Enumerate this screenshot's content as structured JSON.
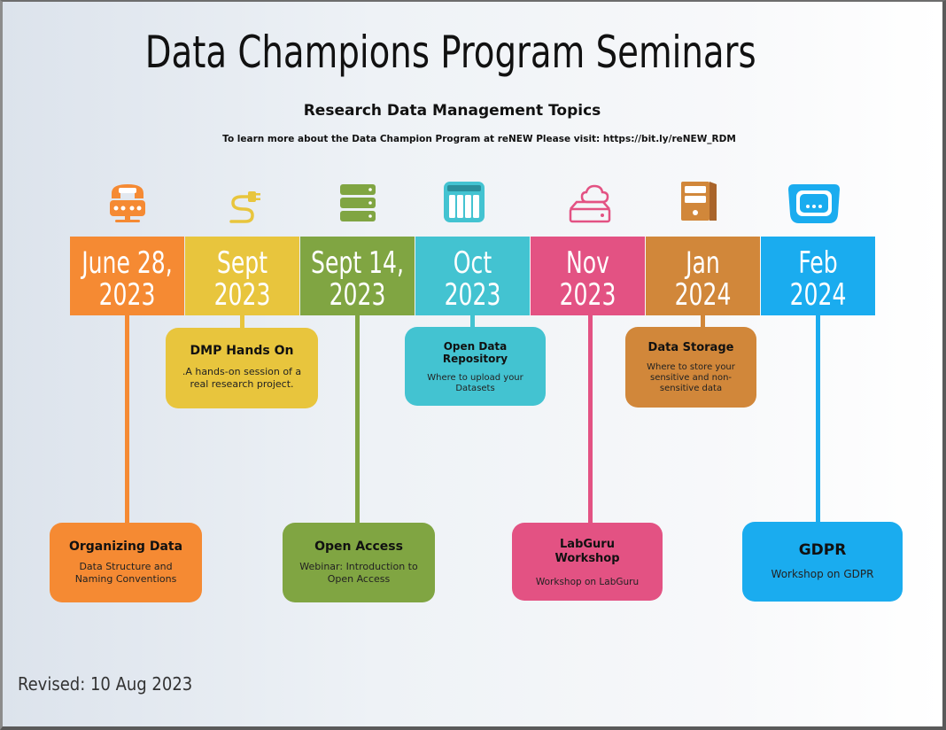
{
  "header": {
    "title": "Data Champions Program Seminars",
    "subtitle": "Research Data Management Topics",
    "info": "To learn more about the Data Champion Program at reNEW Please visit: https://bit.ly/reNEW_RDM"
  },
  "colors": {
    "orange": "#f58a33",
    "yellow": "#e8c53d",
    "green": "#80a542",
    "teal": "#43c3d1",
    "pink": "#e35283",
    "brown": "#d1873a",
    "blue": "#1aacef"
  },
  "timeline": [
    {
      "line1": "June 28,",
      "line2": "2023",
      "icon": "telephone-icon"
    },
    {
      "line1": "Sept",
      "line2": "2023",
      "icon": "cable-plug-icon"
    },
    {
      "line1": "Sept 14,",
      "line2": "2023",
      "icon": "server-stack-icon"
    },
    {
      "line1": "Oct",
      "line2": "2023",
      "icon": "storage-drive-icon"
    },
    {
      "line1": "Nov",
      "line2": "2023",
      "icon": "cloud-drive-icon"
    },
    {
      "line1": "Jan",
      "line2": "2024",
      "icon": "computer-tower-icon"
    },
    {
      "line1": "Feb",
      "line2": "2024",
      "icon": "monitor-icon"
    }
  ],
  "events": [
    {
      "title": "Organizing Data",
      "desc": "Data Structure and Naming Conventions"
    },
    {
      "title": "DMP Hands On",
      "desc": ".A hands-on session of a real research project."
    },
    {
      "title": "Open Access",
      "desc": "Webinar: Introduction to Open Access"
    },
    {
      "title": "Open Data Repository",
      "desc": "Where to upload your Datasets"
    },
    {
      "title": "LabGuru Workshop",
      "desc": "Workshop on LabGuru"
    },
    {
      "title": "Data Storage",
      "desc": "Where to store your sensitive and non-sensitive data"
    },
    {
      "title": "GDPR",
      "desc": "Workshop on GDPR"
    }
  ],
  "footer": {
    "revised": "Revised: 10 Aug 2023"
  }
}
